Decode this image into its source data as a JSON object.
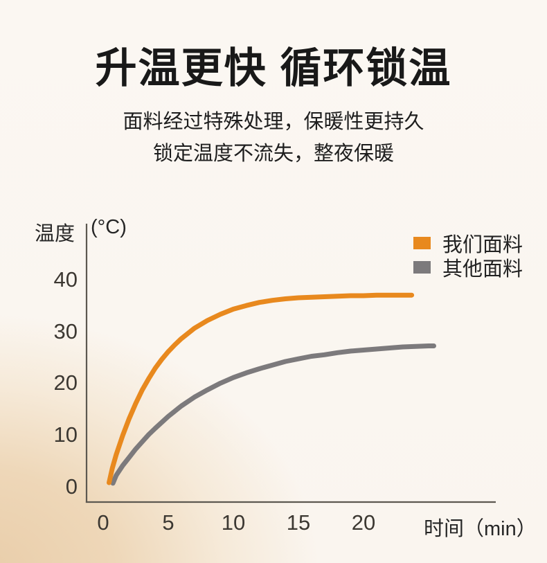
{
  "header": {
    "title": "升温更快 循环锁温",
    "subtitle_line1": "面料经过特殊处理，保暖性更持久",
    "subtitle_line2": "锁定温度不流失，整夜保暖"
  },
  "chart_data": {
    "type": "line",
    "title": "",
    "ylabel": "温度",
    "y_unit": "(°C)",
    "xlabel": "时间（min）",
    "x_ticks": [
      0,
      5,
      10,
      15,
      20
    ],
    "y_ticks": [
      0,
      10,
      20,
      30,
      40
    ],
    "xlim": [
      0,
      30
    ],
    "ylim": [
      0,
      45
    ],
    "grid": false,
    "legend_position": "top-right",
    "series": [
      {
        "name": "我们面料",
        "color": "#E8891E",
        "x": [
          0.45,
          0.7,
          1,
          1.5,
          2,
          2.5,
          3,
          3.5,
          4,
          4.5,
          5,
          5.5,
          6,
          7,
          8,
          9,
          10,
          11,
          12,
          13,
          14,
          15,
          16,
          17,
          18,
          19,
          20,
          21,
          22,
          23,
          23.7
        ],
        "y": [
          0.8,
          3.6,
          6.2,
          9.9,
          13.2,
          16.1,
          18.7,
          20.9,
          22.9,
          24.6,
          26.1,
          27.4,
          28.6,
          30.6,
          32.1,
          33.3,
          34.3,
          35.0,
          35.6,
          36.0,
          36.3,
          36.5,
          36.6,
          36.7,
          36.8,
          36.9,
          36.9,
          37.0,
          37.0,
          37.0,
          37.0
        ]
      },
      {
        "name": "其他面料",
        "color": "#7C7A7C",
        "x": [
          0.75,
          1,
          1.5,
          2,
          2.5,
          3,
          3.5,
          4,
          5,
          6,
          7,
          8,
          9,
          10,
          11,
          12,
          13,
          14,
          15,
          16,
          17,
          18,
          19,
          20,
          21,
          22,
          23,
          24,
          25,
          25.4
        ],
        "y": [
          0.7,
          2.2,
          4.1,
          5.7,
          7.3,
          8.7,
          10.1,
          11.3,
          13.6,
          15.6,
          17.3,
          18.7,
          20.0,
          21.1,
          22.0,
          22.8,
          23.5,
          24.2,
          24.7,
          25.2,
          25.5,
          25.9,
          26.2,
          26.4,
          26.6,
          26.8,
          27.0,
          27.1,
          27.2,
          27.2
        ]
      }
    ]
  },
  "colors": {
    "accent_orange": "#E8891E",
    "series_gray": "#7C7A7C",
    "axis": "#5C5850",
    "title_text": "#191919",
    "background_top": "#FAF6F1",
    "background_peach": "#E9CDA9"
  }
}
